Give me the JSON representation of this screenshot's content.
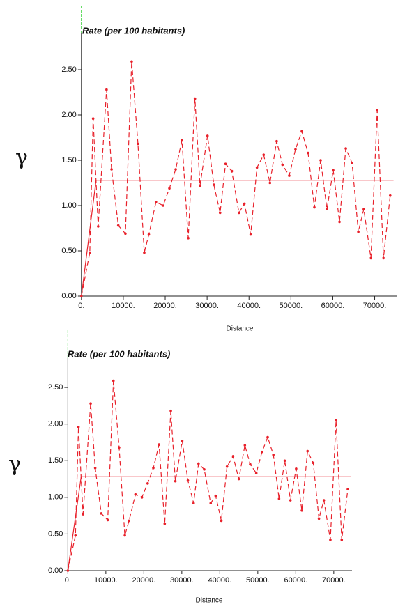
{
  "chart_data": [
    {
      "type": "line",
      "title": "Rate (per 100 habitants)",
      "ylabel": "γ",
      "xlabel": "Distance",
      "xlim": [
        -800,
        75400
      ],
      "ylim": [
        0,
        2.9
      ],
      "xticks": [
        {
          "value": 0,
          "label": "0."
        },
        {
          "value": 10000,
          "label": "10000."
        },
        {
          "value": 20000,
          "label": "20000."
        },
        {
          "value": 30000,
          "label": "30000."
        },
        {
          "value": 40000,
          "label": "40000."
        },
        {
          "value": 50000,
          "label": "50000."
        },
        {
          "value": 60000,
          "label": "60000."
        },
        {
          "value": 70000,
          "label": "70000."
        }
      ],
      "yticks": [
        {
          "value": 0,
          "label": "0.00"
        },
        {
          "value": 0.5,
          "label": "0.50"
        },
        {
          "value": 1,
          "label": "1.00"
        },
        {
          "value": 1.5,
          "label": "1.50"
        },
        {
          "value": 2,
          "label": "2.00"
        },
        {
          "value": 2.5,
          "label": "2.50"
        }
      ],
      "series": [
        {
          "color": "#e8202a",
          "dashed": true,
          "markers": true,
          "x": [
            0,
            2000,
            2800,
            4000,
            6000,
            7200,
            8800,
            10500,
            12000,
            13500,
            15000,
            16100,
            17800,
            19500,
            21000,
            22500,
            24000,
            25500,
            27100,
            28300,
            30100,
            31600,
            33100,
            34400,
            35900,
            37600,
            38900,
            40400,
            41900,
            43500,
            45000,
            46600,
            48000,
            49600,
            51100,
            52600,
            54100,
            55600,
            57100,
            58600,
            60100,
            61600,
            63100,
            64600,
            66100,
            67400,
            69100,
            70600,
            72100,
            73700
          ],
          "values": [
            0,
            0.48,
            1.96,
            0.77,
            2.28,
            1.4,
            0.78,
            0.69,
            2.59,
            1.68,
            0.48,
            0.68,
            1.04,
            1.0,
            1.19,
            1.4,
            1.72,
            0.64,
            2.18,
            1.22,
            1.77,
            1.23,
            0.92,
            1.46,
            1.38,
            0.92,
            1.02,
            0.68,
            1.42,
            1.56,
            1.25,
            1.71,
            1.45,
            1.33,
            1.62,
            1.82,
            1.58,
            0.98,
            1.5,
            0.96,
            1.39,
            0.82,
            1.63,
            1.47,
            0.71,
            0.96,
            0.42,
            2.05,
            0.42,
            1.11
          ]
        },
        {
          "color": "#e8202a",
          "dashed": false,
          "markers": false,
          "x": [
            0,
            3500,
            74500
          ],
          "values": [
            0,
            1.28,
            1.28
          ]
        }
      ]
    },
    {
      "type": "line",
      "title": "Rate (per 100 habitants)",
      "ylabel": "γ",
      "xlabel": "Distance",
      "xlim": [
        -800,
        74800
      ],
      "ylim": [
        0,
        2.9
      ],
      "xticks": [
        {
          "value": 0,
          "label": "0."
        },
        {
          "value": 10000,
          "label": "10000."
        },
        {
          "value": 20000,
          "label": "20000."
        },
        {
          "value": 30000,
          "label": "30000."
        },
        {
          "value": 40000,
          "label": "40000."
        },
        {
          "value": 50000,
          "label": "50000."
        },
        {
          "value": 60000,
          "label": "60000."
        },
        {
          "value": 70000,
          "label": "70000."
        }
      ],
      "yticks": [
        {
          "value": 0,
          "label": "0.00"
        },
        {
          "value": 0.5,
          "label": "0.50"
        },
        {
          "value": 1,
          "label": "1.00"
        },
        {
          "value": 1.5,
          "label": "1.50"
        },
        {
          "value": 2,
          "label": "2.00"
        },
        {
          "value": 2.5,
          "label": "2.50"
        }
      ],
      "series": [
        {
          "color": "#e8202a",
          "dashed": true,
          "markers": true,
          "x": [
            0,
            2000,
            2800,
            4000,
            6000,
            7200,
            8800,
            10500,
            12000,
            13500,
            15000,
            16100,
            17800,
            19500,
            21000,
            22500,
            24000,
            25500,
            27100,
            28300,
            30100,
            31600,
            33100,
            34400,
            35900,
            37600,
            38900,
            40400,
            41900,
            43500,
            45000,
            46600,
            48000,
            49600,
            51100,
            52600,
            54100,
            55600,
            57100,
            58600,
            60100,
            61600,
            63100,
            64600,
            66100,
            67400,
            69100,
            70600,
            72100,
            73700
          ],
          "values": [
            0,
            0.48,
            1.96,
            0.77,
            2.28,
            1.4,
            0.78,
            0.69,
            2.59,
            1.68,
            0.48,
            0.68,
            1.04,
            1.0,
            1.19,
            1.4,
            1.72,
            0.64,
            2.18,
            1.22,
            1.77,
            1.23,
            0.92,
            1.46,
            1.38,
            0.92,
            1.02,
            0.68,
            1.42,
            1.56,
            1.25,
            1.71,
            1.45,
            1.33,
            1.62,
            1.82,
            1.58,
            0.98,
            1.5,
            0.96,
            1.39,
            0.82,
            1.63,
            1.47,
            0.71,
            0.96,
            0.42,
            2.05,
            0.42,
            1.11
          ]
        },
        {
          "color": "#e8202a",
          "dashed": false,
          "markers": false,
          "x": [
            0,
            3500,
            74500
          ],
          "values": [
            0,
            1.28,
            1.28
          ]
        }
      ]
    }
  ]
}
